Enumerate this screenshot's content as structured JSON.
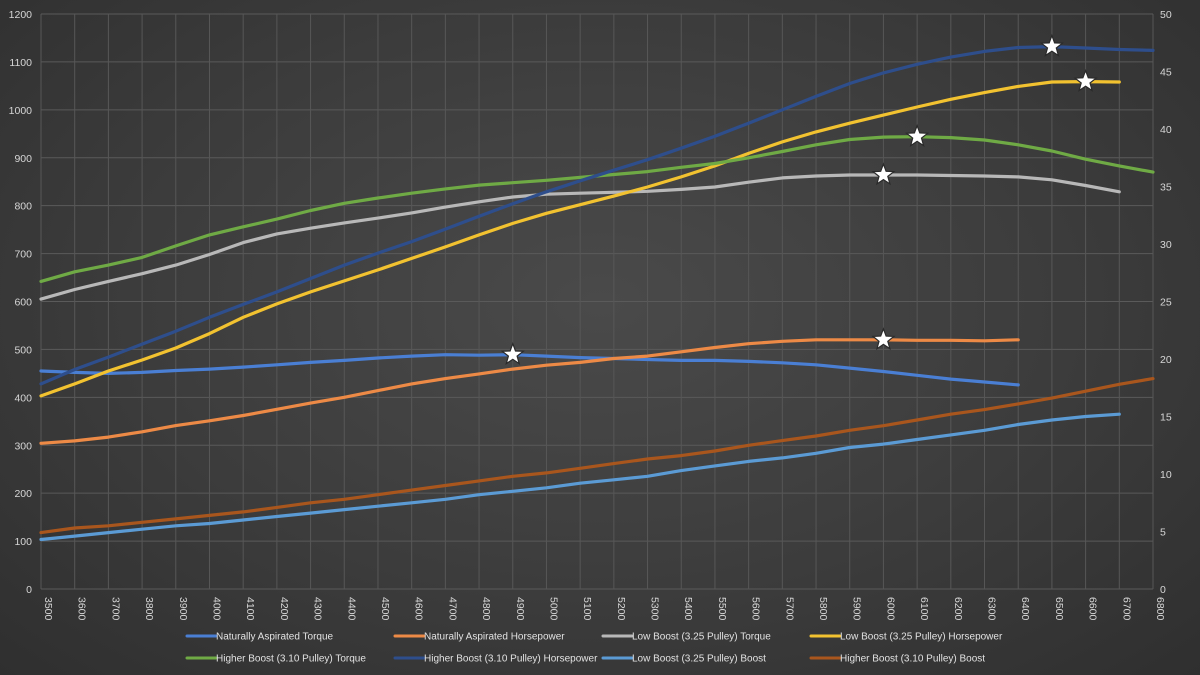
{
  "chart_data": {
    "type": "line",
    "x": [
      3500,
      3600,
      3700,
      3800,
      3900,
      4000,
      4100,
      4200,
      4300,
      4400,
      4500,
      4600,
      4700,
      4800,
      4900,
      5000,
      5100,
      5200,
      5300,
      5400,
      5500,
      5600,
      5700,
      5800,
      5900,
      6000,
      6100,
      6200,
      6300,
      6400,
      6500,
      6600,
      6700,
      6800
    ],
    "xlim": [
      3500,
      6800
    ],
    "ylim_left": [
      0,
      1200
    ],
    "ylim_right": [
      0,
      50
    ],
    "left_ticks": [
      0,
      100,
      200,
      300,
      400,
      500,
      600,
      700,
      800,
      900,
      1000,
      1100,
      1200
    ],
    "right_ticks": [
      0,
      5,
      10,
      15,
      20,
      25,
      30,
      35,
      40,
      45,
      50
    ],
    "x_ticks": [
      "3500",
      "3600",
      "3700",
      "3800",
      "3900",
      "4000",
      "4100",
      "4200",
      "4300",
      "4400",
      "4500",
      "4600",
      "4700",
      "4800",
      "4900",
      "5000",
      "5100",
      "5200",
      "5300",
      "5400",
      "5500",
      "5600",
      "5700",
      "5800",
      "5900",
      "6000",
      "6100",
      "6200",
      "6300",
      "6400",
      "6500",
      "6600",
      "6700",
      "6800"
    ],
    "grid": true,
    "legend_position": "bottom",
    "series": [
      {
        "name": "Naturally Aspirated Torque",
        "color": "#4a7fd4",
        "axis": "left",
        "values": [
          455,
          452,
          450,
          452,
          456,
          459,
          463,
          468,
          473,
          477,
          482,
          486,
          489,
          488,
          489,
          486,
          483,
          481,
          479,
          477,
          477,
          475,
          472,
          468,
          461,
          454,
          446,
          438,
          432,
          426,
          null,
          null,
          null,
          null
        ],
        "peak_marker_x": 4900
      },
      {
        "name": "Naturally Aspirated Horsepower",
        "color": "#ed8a46",
        "axis": "left",
        "values": [
          304,
          309,
          317,
          328,
          341,
          351,
          362,
          375,
          388,
          400,
          414,
          428,
          439,
          449,
          459,
          467,
          473,
          481,
          486,
          495,
          504,
          512,
          517,
          520,
          520,
          520,
          519,
          519,
          518,
          520,
          null,
          null,
          null,
          null
        ],
        "peak_marker_x": 6000
      },
      {
        "name": "Low Boost (3.25 Pulley) Torque",
        "color": "#b8b8b8",
        "axis": "left",
        "values": [
          605,
          625,
          642,
          658,
          676,
          698,
          723,
          741,
          753,
          764,
          774,
          785,
          797,
          808,
          818,
          824,
          826,
          828,
          830,
          834,
          839,
          849,
          858,
          862,
          864,
          864,
          864,
          863,
          862,
          860,
          854,
          842,
          829,
          null
        ],
        "peak_marker_x": 6000
      },
      {
        "name": "Low Boost (3.25 Pulley) Horsepower",
        "color": "#f2c230",
        "axis": "left",
        "values": [
          403,
          428,
          455,
          478,
          503,
          533,
          567,
          595,
          620,
          643,
          666,
          690,
          714,
          739,
          763,
          784,
          802,
          820,
          839,
          860,
          883,
          909,
          933,
          954,
          972,
          989,
          1006,
          1022,
          1036,
          1049,
          1058,
          1059,
          1058,
          null
        ],
        "peak_marker_x": 6600
      },
      {
        "name": "Higher Boost (3.10 Pulley) Torque",
        "color": "#6faa45",
        "axis": "left",
        "values": [
          642,
          662,
          676,
          692,
          716,
          739,
          756,
          772,
          790,
          805,
          816,
          826,
          835,
          843,
          848,
          853,
          859,
          865,
          871,
          880,
          888,
          900,
          913,
          927,
          938,
          943,
          944,
          942,
          937,
          927,
          914,
          897,
          883,
          870
        ],
        "peak_marker_x": 6100
      },
      {
        "name": "Higher Boost (3.10 Pulley) Horsepower",
        "color": "#2e4e8c",
        "axis": "left",
        "values": [
          428,
          458,
          484,
          511,
          538,
          567,
          594,
          620,
          648,
          676,
          701,
          725,
          751,
          778,
          804,
          829,
          852,
          874,
          896,
          920,
          945,
          972,
          1000,
          1028,
          1055,
          1077,
          1095,
          1110,
          1122,
          1130,
          1132,
          1129,
          1126,
          1124
        ],
        "peak_marker_x": 6500
      },
      {
        "name": "Low Boost (3.25 Pulley) Boost",
        "color": "#5b9bd5",
        "axis": "right",
        "values": [
          4.3,
          4.6,
          4.9,
          5.2,
          5.5,
          5.7,
          6.0,
          6.3,
          6.6,
          6.9,
          7.2,
          7.5,
          7.8,
          8.2,
          8.5,
          8.8,
          9.2,
          9.5,
          9.8,
          10.3,
          10.7,
          11.1,
          11.4,
          11.8,
          12.3,
          12.6,
          13.0,
          13.4,
          13.8,
          14.3,
          14.7,
          15.0,
          15.2,
          null
        ]
      },
      {
        "name": "Higher Boost (3.10 Pulley) Boost",
        "color": "#a9561d",
        "axis": "right",
        "values": [
          4.9,
          5.3,
          5.5,
          5.8,
          6.1,
          6.4,
          6.7,
          7.1,
          7.5,
          7.8,
          8.2,
          8.6,
          9.0,
          9.4,
          9.8,
          10.1,
          10.5,
          10.9,
          11.3,
          11.6,
          12.0,
          12.5,
          12.9,
          13.3,
          13.8,
          14.2,
          14.7,
          15.2,
          15.6,
          16.1,
          16.6,
          17.2,
          17.8,
          18.3
        ]
      }
    ]
  }
}
